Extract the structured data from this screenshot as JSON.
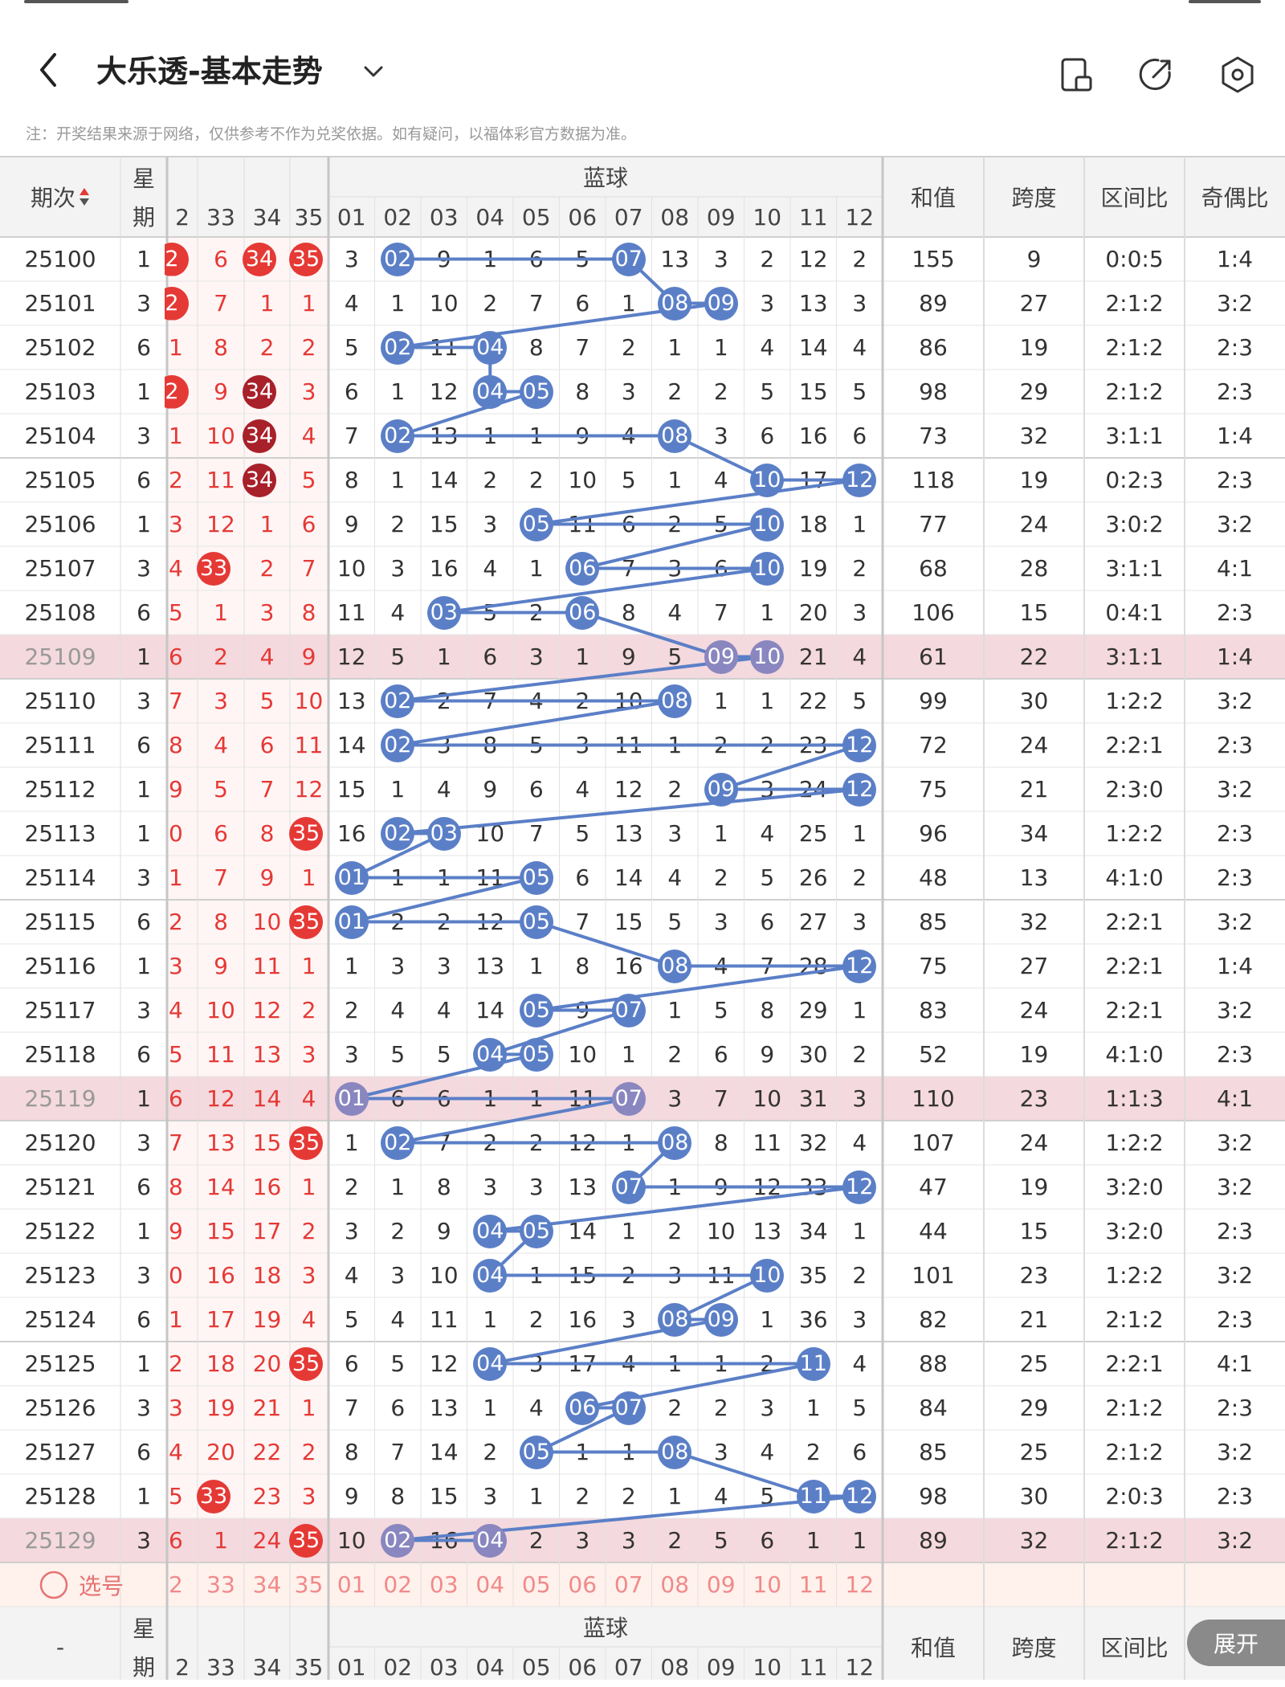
{
  "header": {
    "title": "大乐透-基本走势"
  },
  "note": "注：开奖结果来源于网络，仅供参考不作为兑奖依据。如有疑问，以福体彩官方数据为准。",
  "table": {
    "period_header": "期次",
    "week_header_top": "星",
    "week_header_bottom": "期",
    "blue_header": "蓝球",
    "red_visible_cols": [
      "2",
      "33",
      "34",
      "35"
    ],
    "blue_cols": [
      "01",
      "02",
      "03",
      "04",
      "05",
      "06",
      "07",
      "08",
      "09",
      "10",
      "11",
      "12"
    ],
    "stat_headers": [
      "和值",
      "跨度",
      "区间比",
      "奇偶比"
    ],
    "rows": [
      {
        "period": "25100",
        "week": "1",
        "reds": [
          "2",
          "6",
          "34",
          "35"
        ],
        "red_balls": [
          0,
          2,
          3
        ],
        "red_dark": [],
        "blues": [
          "3",
          "02",
          "9",
          "1",
          "6",
          "5",
          "07",
          "13",
          "3",
          "2",
          "12",
          "2"
        ],
        "blue_picks": [
          2,
          7
        ],
        "sum": "155",
        "span": "9",
        "zone": "0:0:5",
        "oe": "1:4",
        "hl": false
      },
      {
        "period": "25101",
        "week": "3",
        "reds": [
          "2",
          "7",
          "1",
          "1"
        ],
        "red_balls": [
          0
        ],
        "red_dark": [],
        "blues": [
          "4",
          "1",
          "10",
          "2",
          "7",
          "6",
          "1",
          "08",
          "09",
          "3",
          "13",
          "3"
        ],
        "blue_picks": [
          8,
          9
        ],
        "sum": "89",
        "span": "27",
        "zone": "2:1:2",
        "oe": "3:2",
        "hl": false
      },
      {
        "period": "25102",
        "week": "6",
        "reds": [
          "1",
          "8",
          "2",
          "2"
        ],
        "red_balls": [],
        "red_dark": [],
        "blues": [
          "5",
          "02",
          "11",
          "04",
          "8",
          "7",
          "2",
          "1",
          "1",
          "4",
          "14",
          "4"
        ],
        "blue_picks": [
          2,
          4
        ],
        "sum": "86",
        "span": "19",
        "zone": "2:1:2",
        "oe": "2:3",
        "hl": false
      },
      {
        "period": "25103",
        "week": "1",
        "reds": [
          "2",
          "9",
          "34",
          "3"
        ],
        "red_balls": [
          0
        ],
        "red_dark": [
          2
        ],
        "blues": [
          "6",
          "1",
          "12",
          "04",
          "05",
          "8",
          "3",
          "2",
          "2",
          "5",
          "15",
          "5"
        ],
        "blue_picks": [
          4,
          5
        ],
        "sum": "98",
        "span": "29",
        "zone": "2:1:2",
        "oe": "2:3",
        "hl": false
      },
      {
        "period": "25104",
        "week": "3",
        "reds": [
          "1",
          "10",
          "34",
          "4"
        ],
        "red_balls": [],
        "red_dark": [
          2
        ],
        "blues": [
          "7",
          "02",
          "13",
          "1",
          "1",
          "9",
          "4",
          "08",
          "3",
          "6",
          "16",
          "6"
        ],
        "blue_picks": [
          2,
          8
        ],
        "sum": "73",
        "span": "32",
        "zone": "3:1:1",
        "oe": "1:4",
        "hl": false
      },
      {
        "period": "25105",
        "week": "6",
        "reds": [
          "2",
          "11",
          "34",
          "5"
        ],
        "red_balls": [],
        "red_dark": [
          2
        ],
        "blues": [
          "8",
          "1",
          "14",
          "2",
          "2",
          "10",
          "5",
          "1",
          "4",
          "10",
          "17",
          "12"
        ],
        "blue_picks": [
          10,
          12
        ],
        "sum": "118",
        "span": "19",
        "zone": "0:2:3",
        "oe": "2:3",
        "hl": false
      },
      {
        "period": "25106",
        "week": "1",
        "reds": [
          "3",
          "12",
          "1",
          "6"
        ],
        "red_balls": [],
        "red_dark": [],
        "blues": [
          "9",
          "2",
          "15",
          "3",
          "05",
          "11",
          "6",
          "2",
          "5",
          "10",
          "18",
          "1"
        ],
        "blue_picks": [
          5,
          10
        ],
        "sum": "77",
        "span": "24",
        "zone": "3:0:2",
        "oe": "3:2",
        "hl": false
      },
      {
        "period": "25107",
        "week": "3",
        "reds": [
          "4",
          "33",
          "2",
          "7"
        ],
        "red_balls": [
          1
        ],
        "red_dark": [],
        "blues": [
          "10",
          "3",
          "16",
          "4",
          "1",
          "06",
          "7",
          "3",
          "6",
          "10",
          "19",
          "2"
        ],
        "blue_picks": [
          6,
          10
        ],
        "sum": "68",
        "span": "28",
        "zone": "3:1:1",
        "oe": "4:1",
        "hl": false
      },
      {
        "period": "25108",
        "week": "6",
        "reds": [
          "5",
          "1",
          "3",
          "8"
        ],
        "red_balls": [],
        "red_dark": [],
        "blues": [
          "11",
          "4",
          "03",
          "5",
          "2",
          "06",
          "8",
          "4",
          "7",
          "1",
          "20",
          "3"
        ],
        "blue_picks": [
          3,
          6
        ],
        "sum": "106",
        "span": "15",
        "zone": "0:4:1",
        "oe": "2:3",
        "hl": false
      },
      {
        "period": "25109",
        "week": "1",
        "reds": [
          "6",
          "2",
          "4",
          "9"
        ],
        "red_balls": [],
        "red_dark": [],
        "blues": [
          "12",
          "5",
          "1",
          "6",
          "3",
          "1",
          "9",
          "5",
          "09",
          "10",
          "21",
          "4"
        ],
        "blue_picks": [
          9,
          10
        ],
        "sum": "61",
        "span": "22",
        "zone": "3:1:1",
        "oe": "1:4",
        "hl": true
      },
      {
        "period": "25110",
        "week": "3",
        "reds": [
          "7",
          "3",
          "5",
          "10"
        ],
        "red_balls": [],
        "red_dark": [],
        "blues": [
          "13",
          "02",
          "2",
          "7",
          "4",
          "2",
          "10",
          "08",
          "1",
          "1",
          "22",
          "5"
        ],
        "blue_picks": [
          2,
          8
        ],
        "sum": "99",
        "span": "30",
        "zone": "1:2:2",
        "oe": "3:2",
        "hl": false
      },
      {
        "period": "25111",
        "week": "6",
        "reds": [
          "8",
          "4",
          "6",
          "11"
        ],
        "red_balls": [],
        "red_dark": [],
        "blues": [
          "14",
          "02",
          "3",
          "8",
          "5",
          "3",
          "11",
          "1",
          "2",
          "2",
          "23",
          "12"
        ],
        "blue_picks": [
          2,
          12
        ],
        "sum": "72",
        "span": "24",
        "zone": "2:2:1",
        "oe": "2:3",
        "hl": false
      },
      {
        "period": "25112",
        "week": "1",
        "reds": [
          "9",
          "5",
          "7",
          "12"
        ],
        "red_balls": [],
        "red_dark": [],
        "blues": [
          "15",
          "1",
          "4",
          "9",
          "6",
          "4",
          "12",
          "2",
          "09",
          "3",
          "24",
          "12"
        ],
        "blue_picks": [
          9,
          12
        ],
        "sum": "75",
        "span": "21",
        "zone": "2:3:0",
        "oe": "3:2",
        "hl": false
      },
      {
        "period": "25113",
        "week": "1",
        "reds": [
          "0",
          "6",
          "8",
          "35"
        ],
        "red_balls": [
          3
        ],
        "red_dark": [],
        "blues": [
          "16",
          "02",
          "03",
          "10",
          "7",
          "5",
          "13",
          "3",
          "1",
          "4",
          "25",
          "1"
        ],
        "blue_picks": [
          2,
          3
        ],
        "sum": "96",
        "span": "34",
        "zone": "1:2:2",
        "oe": "2:3",
        "hl": false
      },
      {
        "period": "25114",
        "week": "3",
        "reds": [
          "1",
          "7",
          "9",
          "1"
        ],
        "red_balls": [],
        "red_dark": [],
        "blues": [
          "01",
          "1",
          "1",
          "11",
          "05",
          "6",
          "14",
          "4",
          "2",
          "5",
          "26",
          "2"
        ],
        "blue_picks": [
          1,
          5
        ],
        "sum": "48",
        "span": "13",
        "zone": "4:1:0",
        "oe": "2:3",
        "hl": false
      },
      {
        "period": "25115",
        "week": "6",
        "reds": [
          "2",
          "8",
          "10",
          "35"
        ],
        "red_balls": [
          3
        ],
        "red_dark": [],
        "blues": [
          "01",
          "2",
          "2",
          "12",
          "05",
          "7",
          "15",
          "5",
          "3",
          "6",
          "27",
          "3"
        ],
        "blue_picks": [
          1,
          5
        ],
        "sum": "85",
        "span": "32",
        "zone": "2:2:1",
        "oe": "3:2",
        "hl": false
      },
      {
        "period": "25116",
        "week": "1",
        "reds": [
          "3",
          "9",
          "11",
          "1"
        ],
        "red_balls": [],
        "red_dark": [],
        "blues": [
          "1",
          "3",
          "3",
          "13",
          "1",
          "8",
          "16",
          "08",
          "4",
          "7",
          "28",
          "12"
        ],
        "blue_picks": [
          8,
          12
        ],
        "sum": "75",
        "span": "27",
        "zone": "2:2:1",
        "oe": "1:4",
        "hl": false
      },
      {
        "period": "25117",
        "week": "3",
        "reds": [
          "4",
          "10",
          "12",
          "2"
        ],
        "red_balls": [],
        "red_dark": [],
        "blues": [
          "2",
          "4",
          "4",
          "14",
          "05",
          "9",
          "07",
          "1",
          "5",
          "8",
          "29",
          "1"
        ],
        "blue_picks": [
          5,
          7
        ],
        "sum": "83",
        "span": "24",
        "zone": "2:2:1",
        "oe": "3:2",
        "hl": false
      },
      {
        "period": "25118",
        "week": "6",
        "reds": [
          "5",
          "11",
          "13",
          "3"
        ],
        "red_balls": [],
        "red_dark": [],
        "blues": [
          "3",
          "5",
          "5",
          "04",
          "05",
          "10",
          "1",
          "2",
          "6",
          "9",
          "30",
          "2"
        ],
        "blue_picks": [
          4,
          5
        ],
        "sum": "52",
        "span": "19",
        "zone": "4:1:0",
        "oe": "2:3",
        "hl": false
      },
      {
        "period": "25119",
        "week": "1",
        "reds": [
          "6",
          "12",
          "14",
          "4"
        ],
        "red_balls": [],
        "red_dark": [],
        "blues": [
          "01",
          "6",
          "6",
          "1",
          "1",
          "11",
          "07",
          "3",
          "7",
          "10",
          "31",
          "3"
        ],
        "blue_picks": [
          1,
          7
        ],
        "sum": "110",
        "span": "23",
        "zone": "1:1:3",
        "oe": "4:1",
        "hl": true
      },
      {
        "period": "25120",
        "week": "3",
        "reds": [
          "7",
          "13",
          "15",
          "35"
        ],
        "red_balls": [
          3
        ],
        "red_dark": [],
        "blues": [
          "1",
          "02",
          "7",
          "2",
          "2",
          "12",
          "1",
          "08",
          "8",
          "11",
          "32",
          "4"
        ],
        "blue_picks": [
          2,
          8
        ],
        "sum": "107",
        "span": "24",
        "zone": "1:2:2",
        "oe": "3:2",
        "hl": false
      },
      {
        "period": "25121",
        "week": "6",
        "reds": [
          "8",
          "14",
          "16",
          "1"
        ],
        "red_balls": [],
        "red_dark": [],
        "blues": [
          "2",
          "1",
          "8",
          "3",
          "3",
          "13",
          "07",
          "1",
          "9",
          "12",
          "33",
          "12"
        ],
        "blue_picks": [
          7,
          12
        ],
        "sum": "47",
        "span": "19",
        "zone": "3:2:0",
        "oe": "3:2",
        "hl": false
      },
      {
        "period": "25122",
        "week": "1",
        "reds": [
          "9",
          "15",
          "17",
          "2"
        ],
        "red_balls": [],
        "red_dark": [],
        "blues": [
          "3",
          "2",
          "9",
          "04",
          "05",
          "14",
          "1",
          "2",
          "10",
          "13",
          "34",
          "1"
        ],
        "blue_picks": [
          4,
          5
        ],
        "sum": "44",
        "span": "15",
        "zone": "3:2:0",
        "oe": "2:3",
        "hl": false
      },
      {
        "period": "25123",
        "week": "3",
        "reds": [
          "0",
          "16",
          "18",
          "3"
        ],
        "red_balls": [],
        "red_dark": [],
        "blues": [
          "4",
          "3",
          "10",
          "04",
          "1",
          "15",
          "2",
          "3",
          "11",
          "10",
          "35",
          "2"
        ],
        "blue_picks": [
          4,
          10
        ],
        "sum": "101",
        "span": "23",
        "zone": "1:2:2",
        "oe": "3:2",
        "hl": false
      },
      {
        "period": "25124",
        "week": "6",
        "reds": [
          "1",
          "17",
          "19",
          "4"
        ],
        "red_balls": [],
        "red_dark": [],
        "blues": [
          "5",
          "4",
          "11",
          "1",
          "2",
          "16",
          "3",
          "08",
          "09",
          "1",
          "36",
          "3"
        ],
        "blue_picks": [
          8,
          9
        ],
        "sum": "82",
        "span": "21",
        "zone": "2:1:2",
        "oe": "2:3",
        "hl": false
      },
      {
        "period": "25125",
        "week": "1",
        "reds": [
          "2",
          "18",
          "20",
          "35"
        ],
        "red_balls": [
          3
        ],
        "red_dark": [],
        "blues": [
          "6",
          "5",
          "12",
          "04",
          "3",
          "17",
          "4",
          "1",
          "1",
          "2",
          "11",
          "4"
        ],
        "blue_picks": [
          4,
          11
        ],
        "sum": "88",
        "span": "25",
        "zone": "2:2:1",
        "oe": "4:1",
        "hl": false
      },
      {
        "period": "25126",
        "week": "3",
        "reds": [
          "3",
          "19",
          "21",
          "1"
        ],
        "red_balls": [],
        "red_dark": [],
        "blues": [
          "7",
          "6",
          "13",
          "1",
          "4",
          "06",
          "07",
          "2",
          "2",
          "3",
          "1",
          "5"
        ],
        "blue_picks": [
          6,
          7
        ],
        "sum": "84",
        "span": "29",
        "zone": "2:1:2",
        "oe": "2:3",
        "hl": false
      },
      {
        "period": "25127",
        "week": "6",
        "reds": [
          "4",
          "20",
          "22",
          "2"
        ],
        "red_balls": [],
        "red_dark": [],
        "blues": [
          "8",
          "7",
          "14",
          "2",
          "05",
          "1",
          "1",
          "08",
          "3",
          "4",
          "2",
          "6"
        ],
        "blue_picks": [
          5,
          8
        ],
        "sum": "85",
        "span": "25",
        "zone": "2:1:2",
        "oe": "3:2",
        "hl": false
      },
      {
        "period": "25128",
        "week": "1",
        "reds": [
          "5",
          "33",
          "23",
          "3"
        ],
        "red_balls": [
          1
        ],
        "red_dark": [],
        "blues": [
          "9",
          "8",
          "15",
          "3",
          "1",
          "2",
          "2",
          "1",
          "4",
          "5",
          "11",
          "12"
        ],
        "blue_picks": [
          11,
          12
        ],
        "sum": "98",
        "span": "30",
        "zone": "2:0:3",
        "oe": "2:3",
        "hl": false
      },
      {
        "period": "25129",
        "week": "3",
        "reds": [
          "6",
          "1",
          "24",
          "35"
        ],
        "red_balls": [
          3
        ],
        "red_dark": [],
        "blues": [
          "10",
          "02",
          "16",
          "04",
          "2",
          "3",
          "3",
          "2",
          "5",
          "6",
          "1",
          "1"
        ],
        "blue_picks": [
          2,
          4
        ],
        "sum": "89",
        "span": "32",
        "zone": "2:1:2",
        "oe": "3:2",
        "hl": true
      }
    ],
    "select_label": "选号",
    "footer_period": "-"
  },
  "expand_label": "展开",
  "colors": {
    "blue_ball": "#5b7fc7",
    "red_ball": "#e53935",
    "dark_red_ball": "#a8202a",
    "highlight_row": "#f4d9de",
    "line": "#5b7fc7"
  }
}
